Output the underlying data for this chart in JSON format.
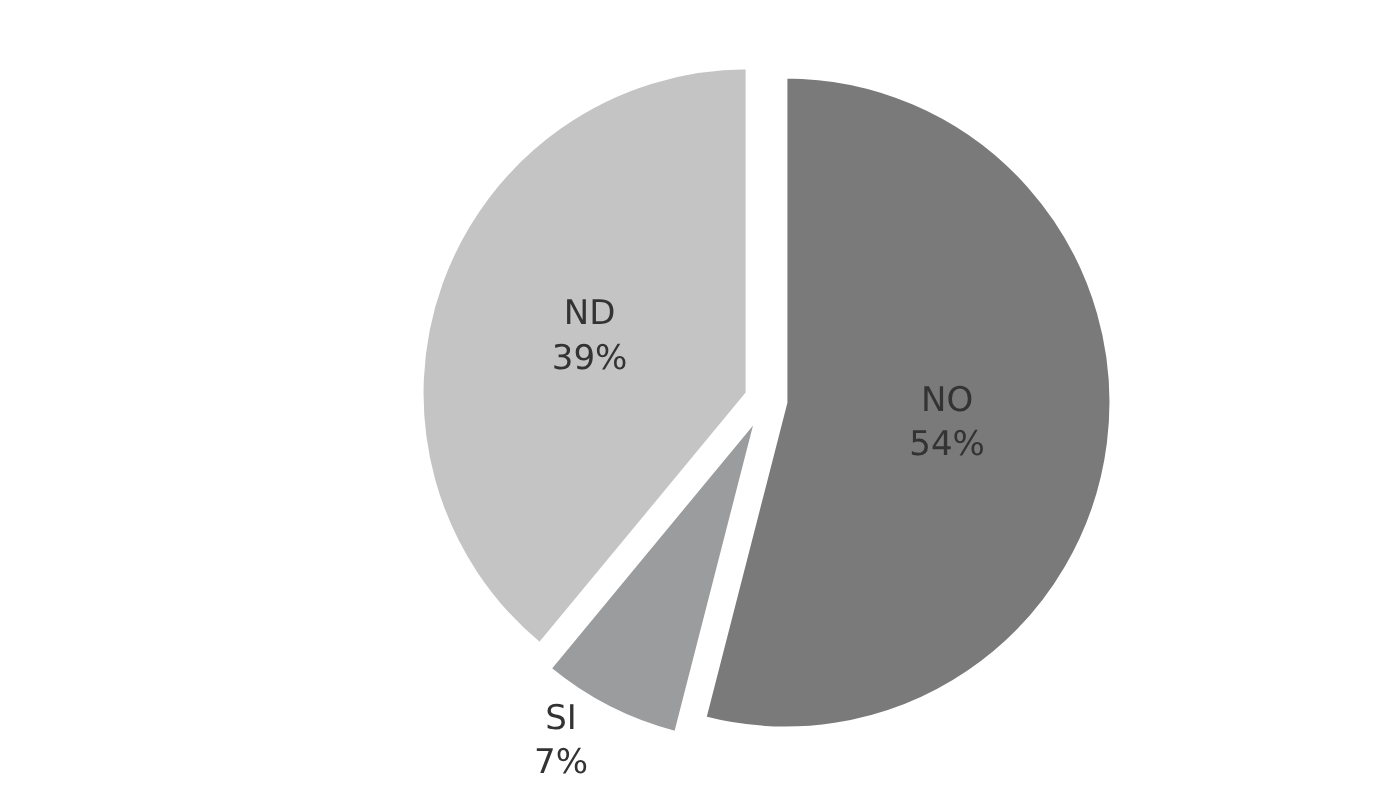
{
  "chart_data": {
    "type": "pie",
    "categories": [
      "NO",
      "SI",
      "ND"
    ],
    "values": [
      54,
      7,
      39
    ],
    "colors": [
      "#7a7a7a",
      "#9b9c9d",
      "#c4c4c4"
    ],
    "value_labels": [
      "54%",
      "7%",
      "39%"
    ],
    "legend": false
  }
}
